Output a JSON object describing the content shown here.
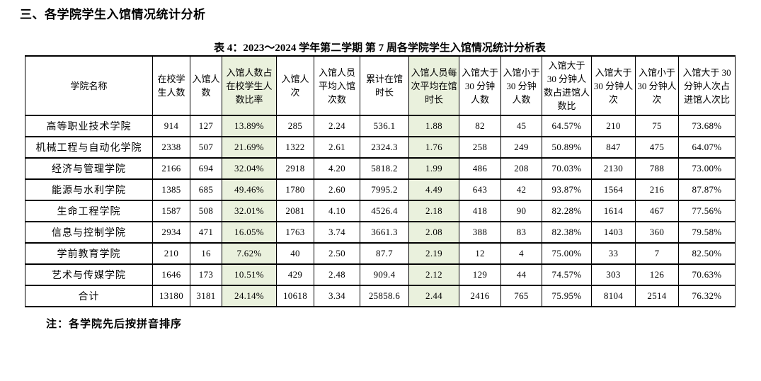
{
  "page": {
    "heading": "三、各学院学生入馆情况统计分析",
    "caption": "表 4：2023～2024 学年第二学期 第 7 周各学院学生入馆情况统计分析表",
    "note": "注：各学院先后按拼音排序"
  },
  "colors": {
    "highlight": "#EAF1DD",
    "border": "#000000",
    "text": "#000000",
    "background": "#FFFFFF"
  },
  "table": {
    "columns": [
      {
        "label": "学院名称",
        "highlight": false
      },
      {
        "label": "在校学生人数",
        "highlight": false
      },
      {
        "label": "入馆人数",
        "highlight": false
      },
      {
        "label": "入馆人数占在校学生人数比率",
        "highlight": true
      },
      {
        "label": "入馆人次",
        "highlight": false
      },
      {
        "label": "入馆人员平均入馆次数",
        "highlight": false
      },
      {
        "label": "累计在馆时长",
        "highlight": false
      },
      {
        "label": "入馆人员每次平均在馆时长",
        "highlight": true
      },
      {
        "label": "入馆大于 30 分钟人数",
        "highlight": false
      },
      {
        "label": "入馆小于 30 分钟人数",
        "highlight": false
      },
      {
        "label": "入馆大于 30 分钟人数占进馆人数比",
        "highlight": false
      },
      {
        "label": "入馆大于 30 分钟人次",
        "highlight": false
      },
      {
        "label": "入馆小于 30 分钟人次",
        "highlight": false
      },
      {
        "label": "入馆大于 30 分钟人次占进馆人次比",
        "highlight": false
      }
    ],
    "rows": [
      [
        "高等职业技术学院",
        "914",
        "127",
        "13.89%",
        "285",
        "2.24",
        "536.1",
        "1.88",
        "82",
        "45",
        "64.57%",
        "210",
        "75",
        "73.68%"
      ],
      [
        "机械工程与自动化学院",
        "2338",
        "507",
        "21.69%",
        "1322",
        "2.61",
        "2324.3",
        "1.76",
        "258",
        "249",
        "50.89%",
        "847",
        "475",
        "64.07%"
      ],
      [
        "经济与管理学院",
        "2166",
        "694",
        "32.04%",
        "2918",
        "4.20",
        "5818.2",
        "1.99",
        "486",
        "208",
        "70.03%",
        "2130",
        "788",
        "73.00%"
      ],
      [
        "能源与水利学院",
        "1385",
        "685",
        "49.46%",
        "1780",
        "2.60",
        "7995.2",
        "4.49",
        "643",
        "42",
        "93.87%",
        "1564",
        "216",
        "87.87%"
      ],
      [
        "生命工程学院",
        "1587",
        "508",
        "32.01%",
        "2081",
        "4.10",
        "4526.4",
        "2.18",
        "418",
        "90",
        "82.28%",
        "1614",
        "467",
        "77.56%"
      ],
      [
        "信息与控制学院",
        "2934",
        "471",
        "16.05%",
        "1763",
        "3.74",
        "3661.3",
        "2.08",
        "388",
        "83",
        "82.38%",
        "1403",
        "360",
        "79.58%"
      ],
      [
        "学前教育学院",
        "210",
        "16",
        "7.62%",
        "40",
        "2.50",
        "87.7",
        "2.19",
        "12",
        "4",
        "75.00%",
        "33",
        "7",
        "82.50%"
      ],
      [
        "艺术与传媒学院",
        "1646",
        "173",
        "10.51%",
        "429",
        "2.48",
        "909.4",
        "2.12",
        "129",
        "44",
        "74.57%",
        "303",
        "126",
        "70.63%"
      ],
      [
        "合计",
        "13180",
        "3181",
        "24.14%",
        "10618",
        "3.34",
        "25858.6",
        "2.44",
        "2416",
        "765",
        "75.95%",
        "8104",
        "2514",
        "76.32%"
      ]
    ]
  }
}
